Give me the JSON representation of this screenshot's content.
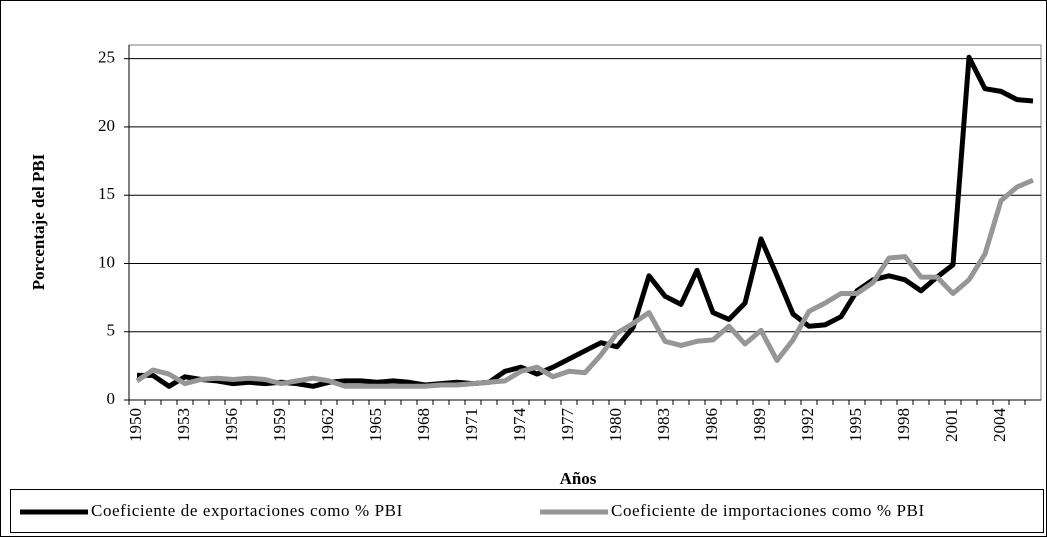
{
  "chart_data": {
    "type": "line",
    "y_label": "Porcentaje del PBI",
    "x_label": "Años",
    "categories": [
      "1950",
      null,
      null,
      "1953",
      null,
      null,
      "1956",
      null,
      null,
      "1959",
      null,
      null,
      "1962",
      null,
      null,
      "1965",
      null,
      null,
      "1968",
      null,
      null,
      "1971",
      null,
      null,
      "1974",
      null,
      null,
      "1977",
      null,
      null,
      "1980",
      null,
      null,
      "1983",
      null,
      null,
      "1986",
      null,
      null,
      "1989",
      null,
      null,
      "1992",
      null,
      null,
      "1995",
      null,
      null,
      "1998",
      null,
      null,
      "2001",
      null,
      null,
      "2004",
      null,
      null
    ],
    "series": [
      {
        "name": "Coeficiente de exportaciones como % PBI",
        "color": "#000000",
        "values": [
          1.8,
          1.8,
          1.0,
          1.7,
          1.5,
          1.4,
          1.2,
          1.3,
          1.2,
          1.3,
          1.2,
          1.0,
          1.3,
          1.4,
          1.4,
          1.3,
          1.4,
          1.3,
          1.1,
          1.2,
          1.3,
          1.2,
          1.3,
          2.1,
          2.4,
          1.9,
          2.4,
          3.0,
          3.6,
          4.2,
          3.9,
          5.3,
          9.1,
          7.6,
          7.0,
          9.5,
          6.4,
          5.9,
          7.1,
          11.8,
          9.1,
          6.3,
          5.4,
          5.5,
          6.1,
          8.0,
          8.8,
          9.1,
          8.8,
          8.0,
          9.0,
          9.9,
          25.1,
          22.8,
          22.6,
          22.0,
          21.9
        ]
      },
      {
        "name": "Coeficiente de importaciones como % PBI",
        "color": "#969696",
        "values": [
          1.4,
          2.2,
          1.9,
          1.2,
          1.5,
          1.6,
          1.5,
          1.6,
          1.5,
          1.2,
          1.4,
          1.6,
          1.4,
          1.0,
          1.0,
          1.0,
          1.0,
          1.0,
          1.0,
          1.1,
          1.1,
          1.2,
          1.3,
          1.4,
          2.1,
          2.4,
          1.7,
          2.1,
          2.0,
          3.3,
          4.9,
          5.6,
          6.4,
          4.3,
          4.0,
          4.3,
          4.4,
          5.4,
          4.1,
          5.1,
          2.9,
          4.4,
          6.5,
          7.1,
          7.8,
          7.8,
          8.6,
          10.4,
          10.5,
          9.0,
          9.0,
          7.8,
          8.8,
          10.7,
          14.6,
          15.6,
          16.1
        ]
      }
    ],
    "ylim": [
      0,
      26
    ],
    "yticks": [
      0,
      5,
      10,
      15,
      20,
      25
    ],
    "grid": true
  }
}
